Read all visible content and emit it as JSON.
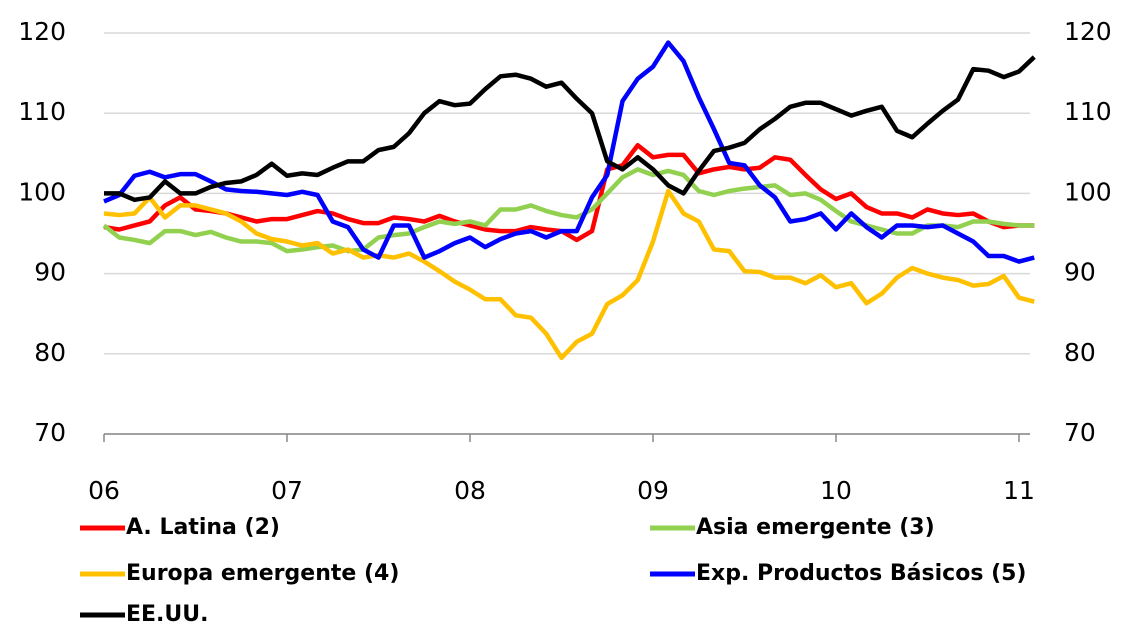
{
  "chart_data": {
    "type": "line",
    "categories": [
      "06",
      null,
      null,
      null,
      null,
      null,
      null,
      null,
      null,
      null,
      null,
      null,
      "07",
      null,
      null,
      null,
      null,
      null,
      null,
      null,
      null,
      null,
      null,
      null,
      "08",
      null,
      null,
      null,
      null,
      null,
      null,
      null,
      null,
      null,
      null,
      null,
      "09",
      null,
      null,
      null,
      null,
      null,
      null,
      null,
      null,
      null,
      null,
      null,
      "10",
      null,
      null,
      null,
      null,
      null,
      null,
      null,
      null,
      null,
      null,
      null,
      "11",
      null
    ],
    "series": [
      {
        "name": "A. Latina (2)",
        "color": "#ff0000",
        "values": [
          95.8,
          95.5,
          96,
          96.5,
          98.5,
          99.5,
          98,
          97.8,
          97.5,
          97,
          96.5,
          96.8,
          96.8,
          97.3,
          97.8,
          97.5,
          96.8,
          96.3,
          96.3,
          97,
          96.8,
          96.5,
          97.2,
          96.5,
          96,
          95.5,
          95.3,
          95.3,
          95.8,
          95.5,
          95.3,
          94.2,
          95.3,
          103,
          103.5,
          106,
          104.5,
          104.8,
          104.8,
          102.5,
          103,
          103.3,
          103,
          103.2,
          104.5,
          104.2,
          102.3,
          100.5,
          99.3,
          100,
          98.3,
          97.5,
          97.5,
          97,
          98,
          97.5,
          97.3,
          97.5,
          96.5,
          95.8,
          96,
          96
        ]
      },
      {
        "name": "Asia emergente (3)",
        "color": "#92d050",
        "values": [
          96,
          94.5,
          94.2,
          93.8,
          95.3,
          95.3,
          94.8,
          95.2,
          94.5,
          94,
          94,
          93.8,
          92.8,
          93,
          93.3,
          93.5,
          92.8,
          93,
          94.5,
          94.8,
          95,
          95.8,
          96.5,
          96.2,
          96.5,
          96,
          98,
          98,
          98.5,
          97.8,
          97.3,
          97,
          98,
          100,
          102,
          103,
          102.3,
          102.8,
          102.3,
          100.3,
          99.8,
          100.3,
          100.6,
          100.8,
          101,
          99.8,
          100,
          99.2,
          97.8,
          96.5,
          96,
          95.5,
          95,
          95,
          96,
          96,
          95.8,
          96.5,
          96.5,
          96.2,
          96,
          96
        ]
      },
      {
        "name": "Europa emergente (4)",
        "color": "#ffc000",
        "values": [
          97.5,
          97.3,
          97.5,
          99.5,
          97,
          98.5,
          98.5,
          98,
          97.5,
          96.5,
          95,
          94.3,
          94,
          93.5,
          93.8,
          92.5,
          93,
          92,
          92.3,
          92,
          92.5,
          91.5,
          90.3,
          89,
          88,
          86.8,
          86.8,
          84.8,
          84.5,
          82.5,
          79.5,
          81.5,
          82.5,
          86.2,
          87.3,
          89.2,
          94,
          100.3,
          97.5,
          96.5,
          93,
          92.8,
          90.3,
          90.2,
          89.5,
          89.5,
          88.8,
          89.8,
          88.3,
          88.8,
          86.3,
          87.5,
          89.5,
          90.7,
          90,
          89.5,
          89.2,
          88.5,
          88.7,
          89.7,
          87,
          86.5
        ]
      },
      {
        "name": "Exp. Productos Básicos (5)",
        "color": "#0000ff",
        "values": [
          99,
          99.8,
          102.2,
          102.7,
          102,
          102.4,
          102.4,
          101.5,
          100.5,
          100.3,
          100.2,
          100,
          99.8,
          100.2,
          99.8,
          96.5,
          95.8,
          93,
          92,
          96,
          96,
          92,
          92.8,
          93.8,
          94.5,
          93.3,
          94.3,
          95,
          95.3,
          94.5,
          95.3,
          95.3,
          99.5,
          102.3,
          111.5,
          114.3,
          115.8,
          118.8,
          116.5,
          112,
          108,
          103.8,
          103.5,
          101,
          99.5,
          96.5,
          96.8,
          97.5,
          95.5,
          97.5,
          95.8,
          94.5,
          96,
          96,
          95.8,
          96,
          95,
          94,
          92.2,
          92.2,
          91.5,
          92
        ]
      },
      {
        "name": "EE.UU.",
        "color": "#000000",
        "values": [
          100,
          100,
          99.2,
          99.5,
          101.5,
          100,
          100,
          100.8,
          101.3,
          101.5,
          102.3,
          103.7,
          102.2,
          102.5,
          102.3,
          103.2,
          104,
          104,
          105.4,
          105.8,
          107.5,
          110,
          111.5,
          111,
          111.2,
          113,
          114.6,
          114.8,
          114.3,
          113.3,
          113.8,
          111.8,
          110,
          104,
          103,
          104.5,
          103,
          101,
          100,
          102.8,
          105.3,
          105.7,
          106.3,
          108,
          109.3,
          110.8,
          111.3,
          111.3,
          110.5,
          109.7,
          110.3,
          110.8,
          107.8,
          107,
          108.7,
          110.3,
          111.7,
          115.5,
          115.3,
          114.5,
          115.2,
          117
        ]
      }
    ],
    "ylim": [
      70,
      120
    ],
    "yticks": [
      70,
      80,
      90,
      100,
      110,
      120
    ],
    "y2lim": [
      70,
      120
    ],
    "y2ticks": [
      70,
      80,
      90,
      100,
      110,
      120
    ],
    "grid": true
  }
}
